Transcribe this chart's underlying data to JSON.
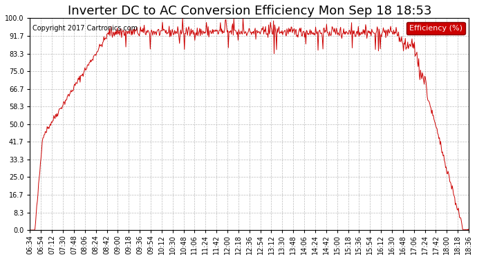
{
  "title": "Inverter DC to AC Conversion Efficiency Mon Sep 18 18:53",
  "copyright": "Copyright 2017 Cartronics.com",
  "legend_label": "Efficiency (%)",
  "legend_bg": "#cc0000",
  "legend_fg": "#ffffff",
  "line_color": "#cc0000",
  "background_color": "#ffffff",
  "plot_bg": "#ffffff",
  "grid_color": "#aaaaaa",
  "ylim": [
    0.0,
    100.0
  ],
  "yticks": [
    0.0,
    8.3,
    16.7,
    25.0,
    33.3,
    41.7,
    50.0,
    58.3,
    66.7,
    75.0,
    83.3,
    91.7,
    100.0
  ],
  "xtick_labels": [
    "06:34",
    "06:54",
    "07:12",
    "07:30",
    "07:48",
    "08:06",
    "08:24",
    "08:42",
    "09:00",
    "09:18",
    "09:36",
    "09:54",
    "10:12",
    "10:30",
    "10:48",
    "11:06",
    "11:24",
    "11:42",
    "12:00",
    "12:18",
    "12:36",
    "12:54",
    "13:12",
    "13:30",
    "13:48",
    "14:06",
    "14:24",
    "14:42",
    "15:00",
    "15:18",
    "15:36",
    "15:54",
    "16:12",
    "16:30",
    "16:48",
    "17:06",
    "17:24",
    "17:42",
    "18:00",
    "18:18",
    "18:36"
  ],
  "title_fontsize": 13,
  "copyright_fontsize": 7,
  "tick_fontsize": 7,
  "legend_fontsize": 8
}
